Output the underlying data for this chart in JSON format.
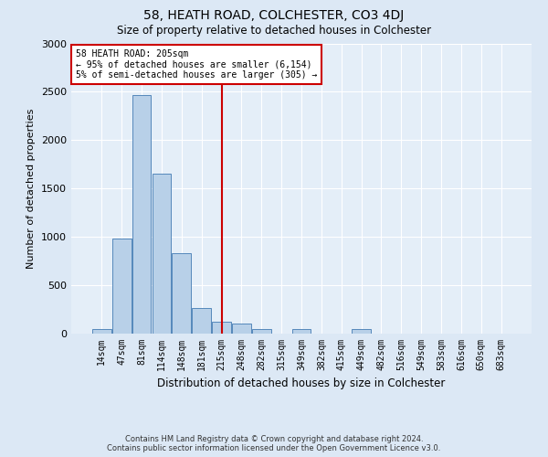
{
  "title1": "58, HEATH ROAD, COLCHESTER, CO3 4DJ",
  "title2": "Size of property relative to detached houses in Colchester",
  "xlabel": "Distribution of detached houses by size in Colchester",
  "ylabel": "Number of detached properties",
  "annotation_title": "58 HEATH ROAD: 205sqm",
  "annotation_line1": "← 95% of detached houses are smaller (6,154)",
  "annotation_line2": "5% of semi-detached houses are larger (305) →",
  "footnote1": "Contains HM Land Registry data © Crown copyright and database right 2024.",
  "footnote2": "Contains public sector information licensed under the Open Government Licence v3.0.",
  "bin_labels": [
    "14sqm",
    "47sqm",
    "81sqm",
    "114sqm",
    "148sqm",
    "181sqm",
    "215sqm",
    "248sqm",
    "282sqm",
    "315sqm",
    "349sqm",
    "382sqm",
    "415sqm",
    "449sqm",
    "482sqm",
    "516sqm",
    "549sqm",
    "583sqm",
    "616sqm",
    "650sqm",
    "683sqm"
  ],
  "bar_heights": [
    50,
    980,
    2470,
    1650,
    830,
    260,
    120,
    100,
    50,
    0,
    50,
    0,
    0,
    50,
    0,
    0,
    0,
    0,
    0,
    0,
    0
  ],
  "bar_color": "#b8d0e8",
  "bar_edge_color": "#5588bb",
  "vline_x_index": 6,
  "vline_color": "#cc0000",
  "ylim": [
    0,
    3000
  ],
  "yticks": [
    0,
    500,
    1000,
    1500,
    2000,
    2500,
    3000
  ],
  "bg_color": "#dce8f5",
  "plot_bg_color": "#e4eef8"
}
